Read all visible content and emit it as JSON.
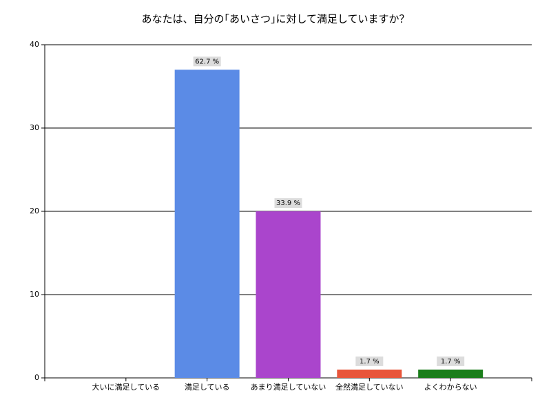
{
  "chart_data": {
    "type": "bar",
    "title": "あなたは、自分の｢あいさつ｣に対して満足していますか？",
    "categories": [
      "大いに満足している",
      "満足している",
      "あまり満足していない",
      "全然満足していない",
      "よくわからない"
    ],
    "values": [
      0,
      37,
      20,
      1,
      1
    ],
    "colors": [
      "#5b8be6",
      "#5b8be6",
      "#aa45cc",
      "#e8553a",
      "#1a7d1a"
    ],
    "data_labels": [
      null,
      {
        "value": 62.7,
        "label": "62.7 %"
      },
      {
        "value": 33.9,
        "label": "33.9 %"
      },
      {
        "value": 1.7,
        "label": "1.7 %"
      },
      {
        "value": 1.7,
        "label": "1.7 %"
      }
    ],
    "ylim": [
      0,
      40
    ],
    "yticks": [
      0,
      10,
      20,
      30,
      40
    ],
    "grid": true
  }
}
